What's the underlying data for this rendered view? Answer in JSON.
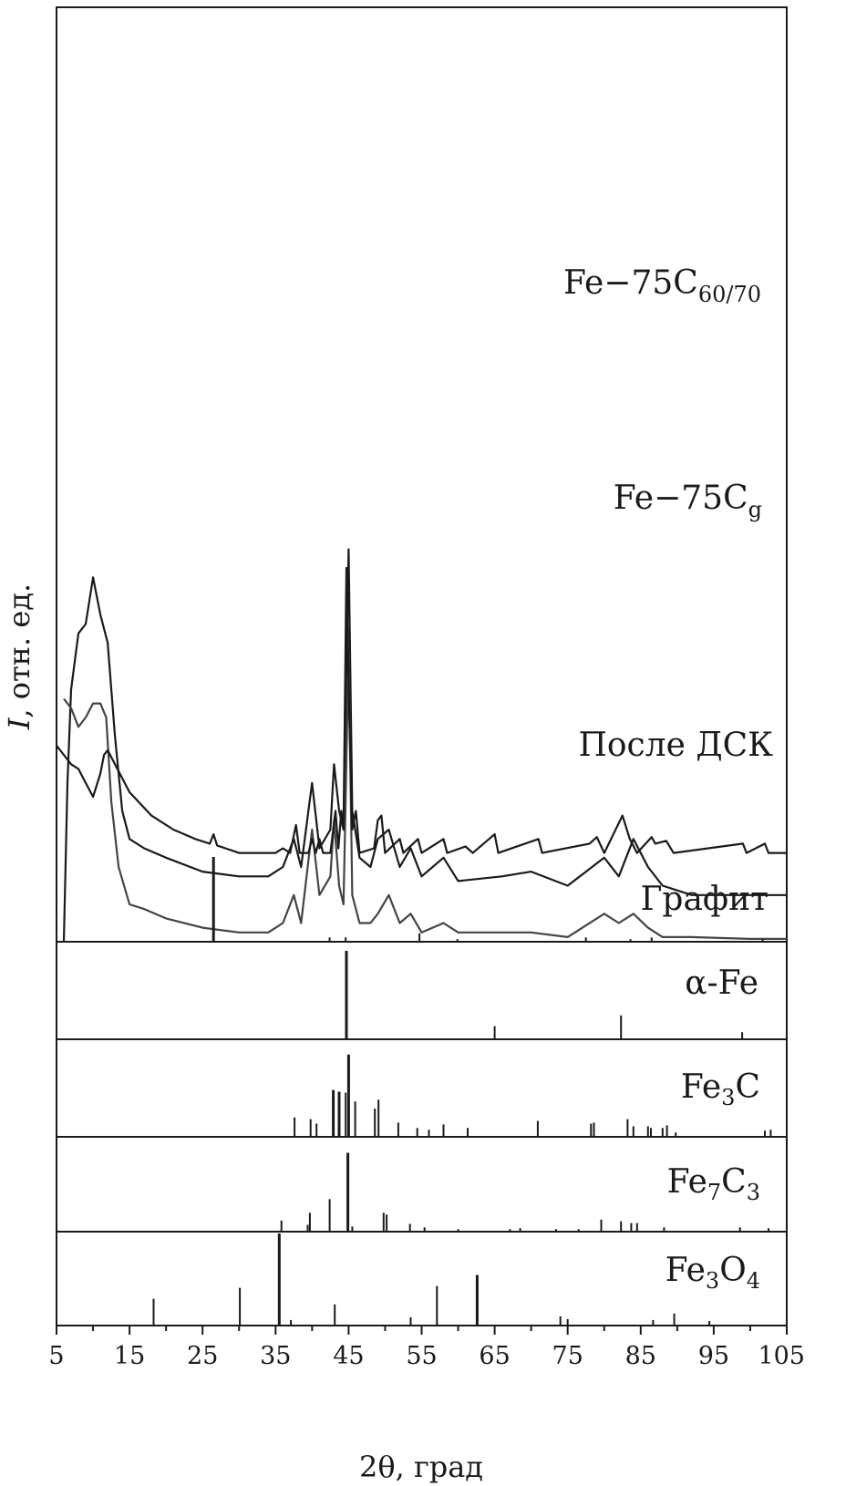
{
  "chart_data": {
    "type": "line",
    "xlabel": "2θ, град",
    "ylabel_italic": "I",
    "ylabel_rest": ", отн. ед.",
    "xlim": [
      5,
      105
    ],
    "x_ticks": [
      5,
      15,
      25,
      35,
      45,
      55,
      65,
      75,
      85,
      95,
      105
    ],
    "x_tick_labels": [
      "5",
      "15",
      "25",
      "35",
      "45",
      "55",
      "65",
      "75",
      "85",
      "95",
      "105"
    ],
    "series": [
      {
        "name_main": "Fe−75C",
        "name_sub": "60/70",
        "color": "#1a1a1a",
        "points": [
          [
            6.0,
            100
          ],
          [
            6.5,
            83
          ],
          [
            7.0,
            73
          ],
          [
            8.0,
            67
          ],
          [
            9.0,
            66
          ],
          [
            10.0,
            61
          ],
          [
            10.5,
            63
          ],
          [
            11.0,
            65
          ],
          [
            12.0,
            68
          ],
          [
            13.0,
            78
          ],
          [
            14.0,
            86
          ],
          [
            15.0,
            89
          ],
          [
            17.0,
            90
          ],
          [
            20.0,
            91
          ],
          [
            25.0,
            92.5
          ],
          [
            30.0,
            93
          ],
          [
            34.0,
            93
          ],
          [
            36.0,
            92
          ],
          [
            37.5,
            89
          ],
          [
            38.5,
            92
          ],
          [
            40.0,
            83
          ],
          [
            41.0,
            90
          ],
          [
            42.5,
            88
          ],
          [
            43.0,
            81
          ],
          [
            43.7,
            86
          ],
          [
            44.3,
            88
          ],
          [
            45.0,
            58
          ],
          [
            45.5,
            86
          ],
          [
            46.5,
            91
          ],
          [
            48.0,
            92
          ],
          [
            49.0,
            89
          ],
          [
            50.5,
            88
          ],
          [
            52.0,
            92
          ],
          [
            53.5,
            90
          ],
          [
            55.0,
            93
          ],
          [
            58.0,
            91
          ],
          [
            60.0,
            93.5
          ],
          [
            66.0,
            93
          ],
          [
            70.0,
            92.5
          ],
          [
            75.0,
            94
          ],
          [
            80.0,
            91
          ],
          [
            82.0,
            93
          ],
          [
            84.0,
            89
          ],
          [
            86.0,
            92
          ],
          [
            88.0,
            94
          ],
          [
            92.0,
            95
          ],
          [
            100.0,
            95
          ],
          [
            105.0,
            95
          ]
        ]
      },
      {
        "name_main": "Fe−75C",
        "name_sub": "g",
        "color": "#444444",
        "points": [
          [
            6.0,
            74
          ],
          [
            7.0,
            75
          ],
          [
            8.0,
            77
          ],
          [
            9.0,
            76
          ],
          [
            10.0,
            74.5
          ],
          [
            11.0,
            74.5
          ],
          [
            11.8,
            76
          ],
          [
            12.5,
            85
          ],
          [
            13.5,
            92
          ],
          [
            15.0,
            96
          ],
          [
            17.0,
            96.5
          ],
          [
            20.0,
            97.5
          ],
          [
            25.0,
            98.5
          ],
          [
            30.0,
            99
          ],
          [
            34.0,
            99
          ],
          [
            36.0,
            98
          ],
          [
            37.5,
            95
          ],
          [
            38.5,
            98
          ],
          [
            40.0,
            88
          ],
          [
            41.0,
            95
          ],
          [
            42.5,
            93
          ],
          [
            43.0,
            87
          ],
          [
            43.7,
            94
          ],
          [
            44.3,
            96
          ],
          [
            45.0,
            69
          ],
          [
            45.5,
            95
          ],
          [
            46.5,
            98
          ],
          [
            48.0,
            98
          ],
          [
            49.0,
            97
          ],
          [
            50.5,
            95
          ],
          [
            52.0,
            98
          ],
          [
            53.5,
            97
          ],
          [
            55.0,
            99
          ],
          [
            58.0,
            98
          ],
          [
            60.0,
            99
          ],
          [
            66.0,
            99
          ],
          [
            70.0,
            99
          ],
          [
            75.0,
            99.5
          ],
          [
            80.0,
            97
          ],
          [
            82.0,
            98
          ],
          [
            84.0,
            97
          ],
          [
            86.0,
            98.5
          ],
          [
            88.0,
            99.5
          ],
          [
            92.0,
            99.5
          ],
          [
            100.0,
            99.7
          ],
          [
            105.0,
            99.7
          ]
        ]
      },
      {
        "name_main": "После ДСК",
        "name_sub": "",
        "color": "#1a1a1a",
        "points": [
          [
            5.0,
            79
          ],
          [
            6.0,
            80
          ],
          [
            7.0,
            81
          ],
          [
            8.0,
            81.5
          ],
          [
            9.0,
            83
          ],
          [
            10.0,
            84.5
          ],
          [
            11.0,
            82
          ],
          [
            11.5,
            80
          ],
          [
            12.0,
            79.5
          ],
          [
            13.0,
            81
          ],
          [
            15.0,
            84
          ],
          [
            18.0,
            86.5
          ],
          [
            21.0,
            88
          ],
          [
            24.0,
            89
          ],
          [
            26.0,
            89.5
          ],
          [
            26.5,
            88.5
          ],
          [
            27.0,
            89.7
          ],
          [
            30.0,
            90.5
          ],
          [
            35.0,
            90.5
          ],
          [
            36.0,
            90
          ],
          [
            37.0,
            90.5
          ],
          [
            37.8,
            87.5
          ],
          [
            38.3,
            90.5
          ],
          [
            39.5,
            90.5
          ],
          [
            40.0,
            89
          ],
          [
            40.5,
            90.5
          ],
          [
            41.0,
            89
          ],
          [
            41.5,
            90.5
          ],
          [
            42.5,
            90.5
          ],
          [
            43.2,
            86
          ],
          [
            43.6,
            90
          ],
          [
            44.0,
            86
          ],
          [
            44.3,
            88
          ],
          [
            44.7,
            60
          ],
          [
            45.1,
            76
          ],
          [
            45.5,
            88
          ],
          [
            46.0,
            86
          ],
          [
            46.5,
            90.5
          ],
          [
            48.5,
            90
          ],
          [
            49.0,
            87
          ],
          [
            49.5,
            86.5
          ],
          [
            50.0,
            90.5
          ],
          [
            52.0,
            89
          ],
          [
            52.5,
            90.5
          ],
          [
            54.5,
            89
          ],
          [
            55.0,
            90.5
          ],
          [
            58.0,
            89
          ],
          [
            58.5,
            90.5
          ],
          [
            61.0,
            89.8
          ],
          [
            62.0,
            90.5
          ],
          [
            65.0,
            88.5
          ],
          [
            65.5,
            90.5
          ],
          [
            71.0,
            89
          ],
          [
            71.5,
            90.5
          ],
          [
            78.0,
            89.5
          ],
          [
            79.0,
            88.8
          ],
          [
            80.0,
            90.5
          ],
          [
            82.5,
            86.5
          ],
          [
            83.5,
            89
          ],
          [
            84.5,
            90.5
          ],
          [
            86.5,
            88.8
          ],
          [
            87.0,
            89.5
          ],
          [
            88.5,
            89.2
          ],
          [
            89.5,
            90.5
          ],
          [
            99.0,
            89.5
          ],
          [
            99.5,
            90.5
          ],
          [
            102.0,
            89.5
          ],
          [
            102.5,
            90.5
          ],
          [
            105.0,
            90.5
          ]
        ]
      }
    ],
    "reference_panels": [
      {
        "name_main": "Графит",
        "name_sub": "",
        "lines": [
          [
            26.5,
            1.0
          ],
          [
            42.4,
            0.05
          ],
          [
            44.6,
            0.05
          ],
          [
            54.7,
            0.1
          ],
          [
            59.9,
            0.03
          ],
          [
            77.5,
            0.05
          ],
          [
            83.6,
            0.03
          ],
          [
            86.5,
            0.05
          ],
          [
            101.7,
            0.03
          ]
        ]
      },
      {
        "name_main": "α-Fe",
        "name_sub": "",
        "lines": [
          [
            44.7,
            1.0
          ],
          [
            65.0,
            0.15
          ],
          [
            82.3,
            0.27
          ],
          [
            98.9,
            0.08
          ]
        ]
      },
      {
        "name_main": "Fe",
        "name_sub": "3",
        "name_main2": "C",
        "name_sub2": "",
        "lines": [
          [
            37.6,
            0.22
          ],
          [
            39.8,
            0.2
          ],
          [
            40.6,
            0.15
          ],
          [
            42.9,
            0.53
          ],
          [
            43.7,
            0.51
          ],
          [
            44.6,
            0.5
          ],
          [
            45.0,
            0.93
          ],
          [
            45.9,
            0.4
          ],
          [
            48.6,
            0.32
          ],
          [
            49.1,
            0.42
          ],
          [
            51.8,
            0.16
          ],
          [
            54.4,
            0.1
          ],
          [
            56.0,
            0.08
          ],
          [
            58.0,
            0.14
          ],
          [
            61.3,
            0.1
          ],
          [
            70.9,
            0.18
          ],
          [
            78.2,
            0.15
          ],
          [
            78.6,
            0.16
          ],
          [
            83.2,
            0.2
          ],
          [
            84.0,
            0.12
          ],
          [
            86.0,
            0.12
          ],
          [
            86.4,
            0.1
          ],
          [
            88.0,
            0.1
          ],
          [
            88.6,
            0.13
          ],
          [
            89.8,
            0.05
          ],
          [
            102.0,
            0.07
          ],
          [
            102.8,
            0.08
          ]
        ]
      },
      {
        "name_main": "Fe",
        "name_sub": "7",
        "name_main2": "C",
        "name_sub2": "3",
        "lines": [
          [
            35.8,
            0.13
          ],
          [
            39.4,
            0.08
          ],
          [
            39.7,
            0.22
          ],
          [
            42.4,
            0.38
          ],
          [
            44.9,
            0.92
          ],
          [
            45.5,
            0.06
          ],
          [
            49.8,
            0.22
          ],
          [
            50.2,
            0.2
          ],
          [
            53.4,
            0.09
          ],
          [
            55.4,
            0.05
          ],
          [
            60.0,
            0.03
          ],
          [
            67.1,
            0.03
          ],
          [
            68.5,
            0.04
          ],
          [
            73.4,
            0.03
          ],
          [
            76.5,
            0.03
          ],
          [
            79.6,
            0.14
          ],
          [
            82.3,
            0.12
          ],
          [
            83.7,
            0.1
          ],
          [
            84.5,
            0.1
          ],
          [
            88.2,
            0.05
          ],
          [
            98.6,
            0.05
          ],
          [
            102.5,
            0.04
          ]
        ]
      },
      {
        "name_main": "Fe",
        "name_sub": "3",
        "name_main2": "O",
        "name_sub2": "4",
        "lines": [
          [
            18.3,
            0.29
          ],
          [
            30.1,
            0.41
          ],
          [
            35.5,
            1.0
          ],
          [
            37.1,
            0.06
          ],
          [
            43.1,
            0.23
          ],
          [
            53.5,
            0.09
          ],
          [
            57.1,
            0.43
          ],
          [
            62.6,
            0.55
          ],
          [
            74.0,
            0.1
          ],
          [
            75.0,
            0.07
          ],
          [
            86.7,
            0.06
          ],
          [
            89.6,
            0.13
          ],
          [
            94.4,
            0.05
          ]
        ]
      }
    ]
  }
}
